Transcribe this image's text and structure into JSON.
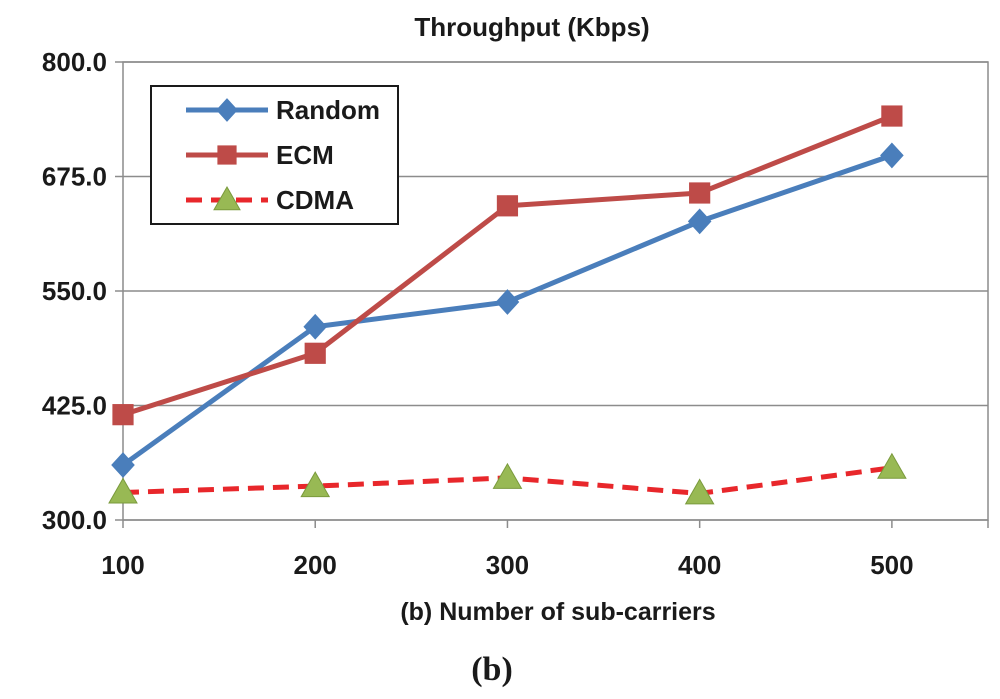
{
  "chart_data": {
    "type": "line",
    "title": "Throughput (Kbps)",
    "xlabel": "(b) Number of  sub-carriers",
    "ylabel": "",
    "x": [
      100,
      200,
      300,
      400,
      500
    ],
    "xlim": [
      100,
      550
    ],
    "ylim": [
      300,
      800
    ],
    "yticks": [
      300,
      425,
      550,
      675,
      800
    ],
    "ytick_labels": [
      "300.0",
      "425.0",
      "550.0",
      "675.0",
      "800.0"
    ],
    "xticks": [
      100,
      200,
      300,
      400,
      500
    ],
    "xtick_labels": [
      "100",
      "200",
      "300",
      "400",
      "500"
    ],
    "grid": true,
    "legend_position": "top-left",
    "series": [
      {
        "name": "Random",
        "values": [
          360,
          511,
          538,
          626,
          698
        ],
        "color": "#4a7ebb",
        "marker": "diamond",
        "dash": "solid"
      },
      {
        "name": "ECM",
        "values": [
          415,
          482,
          643,
          657,
          741
        ],
        "color": "#be4b48",
        "marker": "square",
        "dash": "solid"
      },
      {
        "name": "CDMA",
        "values": [
          330,
          337,
          346,
          329,
          357
        ],
        "color": "#e8272b",
        "marker_color": "#98b954",
        "marker": "triangle",
        "dash": "dashed"
      }
    ]
  },
  "caption": "(b)"
}
